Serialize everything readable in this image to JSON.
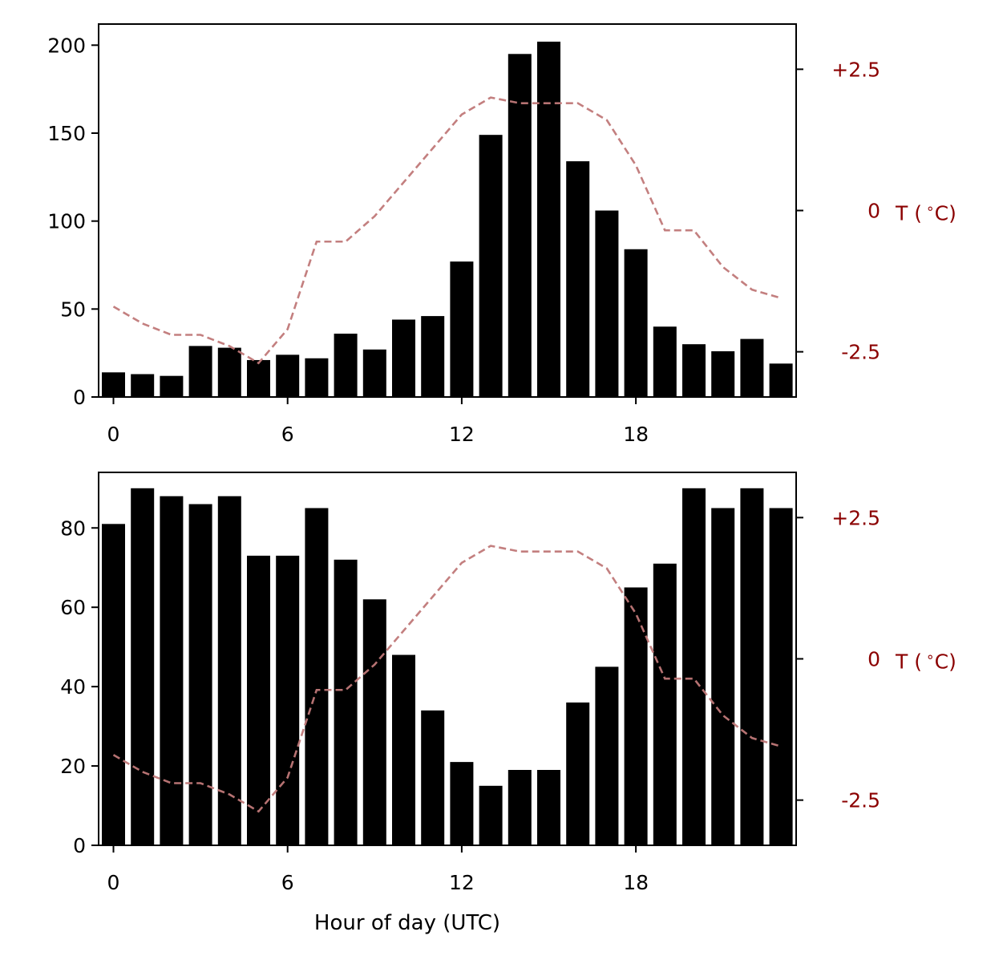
{
  "chart_data": [
    {
      "type": "bar",
      "categories": [
        0,
        1,
        2,
        3,
        4,
        5,
        6,
        7,
        8,
        9,
        10,
        11,
        12,
        13,
        14,
        15,
        16,
        17,
        18,
        19,
        20,
        21,
        22,
        23
      ],
      "values": [
        14,
        13,
        12,
        29,
        28,
        21,
        24,
        22,
        36,
        27,
        44,
        46,
        77,
        149,
        195,
        202,
        134,
        106,
        84,
        40,
        30,
        26,
        33,
        19
      ],
      "ylim": [
        0,
        212
      ],
      "yticks": [
        0,
        50,
        100,
        150,
        200
      ],
      "xticks": [
        0,
        6,
        12,
        18
      ],
      "xlabel": "",
      "ylabel": "",
      "secondary_axis": {
        "type": "line",
        "label": "T ($^\\circ$C)",
        "label_text": "T (",
        "label_degree": "∘",
        "label_close": "C)",
        "ylim": [
          -3.3,
          3.3
        ],
        "ticks": [
          -2.5,
          0,
          2.5
        ],
        "tick_labels": [
          "-2.5",
          "0",
          "+2.5"
        ],
        "values": [
          -1.7,
          -2.0,
          -2.2,
          -2.2,
          -2.4,
          -2.7,
          -2.1,
          -0.55,
          -0.55,
          -0.1,
          0.5,
          1.1,
          1.7,
          2.0,
          1.9,
          1.9,
          1.9,
          1.6,
          0.8,
          -0.35,
          -0.35,
          -1.0,
          -1.4,
          -1.55
        ],
        "color": "#c07878",
        "style": "dashed"
      },
      "bar_color": "#000000"
    },
    {
      "type": "bar",
      "categories": [
        0,
        1,
        2,
        3,
        4,
        5,
        6,
        7,
        8,
        9,
        10,
        11,
        12,
        13,
        14,
        15,
        16,
        17,
        18,
        19,
        20,
        21,
        22,
        23
      ],
      "values": [
        81,
        90,
        88,
        86,
        88,
        73,
        73,
        85,
        72,
        62,
        48,
        34,
        21,
        15,
        19,
        19,
        36,
        45,
        65,
        71,
        90,
        85,
        90,
        85
      ],
      "ylim": [
        0,
        94
      ],
      "yticks": [
        0,
        20,
        40,
        60,
        80
      ],
      "xticks": [
        0,
        6,
        12,
        18
      ],
      "xlabel": "Hour of day (UTC)",
      "ylabel": "",
      "secondary_axis": {
        "type": "line",
        "label": "T ($^\\circ$C)",
        "label_text": "T (",
        "label_degree": "∘",
        "label_close": "C)",
        "ylim": [
          -3.3,
          3.3
        ],
        "ticks": [
          -2.5,
          0,
          2.5
        ],
        "tick_labels": [
          "-2.5",
          "0",
          "+2.5"
        ],
        "values": [
          -1.7,
          -2.0,
          -2.2,
          -2.2,
          -2.4,
          -2.7,
          -2.1,
          -0.55,
          -0.55,
          -0.1,
          0.5,
          1.1,
          1.7,
          2.0,
          1.9,
          1.9,
          1.9,
          1.6,
          0.8,
          -0.35,
          -0.35,
          -1.0,
          -1.4,
          -1.55
        ],
        "color": "#c07878",
        "style": "dashed"
      },
      "bar_color": "#000000"
    }
  ],
  "colors": {
    "axis": "#000000",
    "secondary_axis": "#8b0000"
  }
}
